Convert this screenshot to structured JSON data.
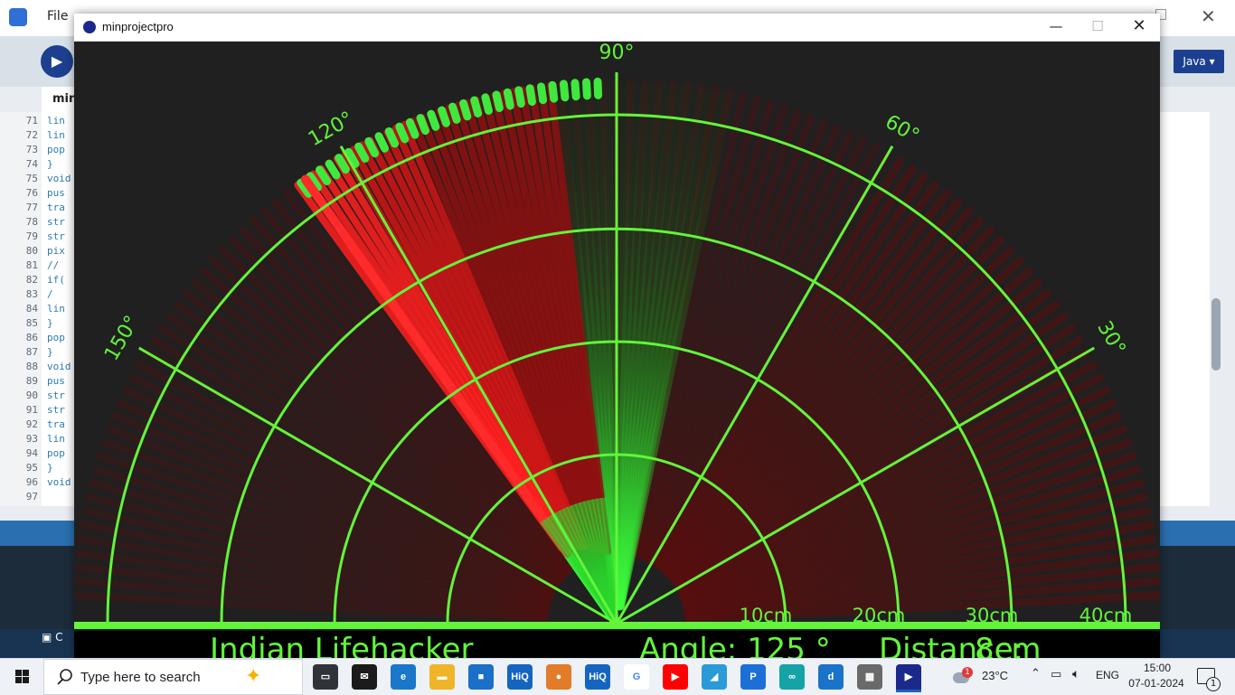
{
  "ide": {
    "menu_file": "File",
    "mode_label": "Java ▾",
    "tab_label": "min",
    "console_tab": "C",
    "lines": [
      {
        "num": "71",
        "code": "lin"
      },
      {
        "num": "72",
        "code": "lin"
      },
      {
        "num": "73",
        "code": "pop"
      },
      {
        "num": "74",
        "code": "}"
      },
      {
        "num": "75",
        "code": "void"
      },
      {
        "num": "76",
        "code": "pus"
      },
      {
        "num": "77",
        "code": "tra"
      },
      {
        "num": "78",
        "code": "str"
      },
      {
        "num": "79",
        "code": "str"
      },
      {
        "num": "80",
        "code": "pix"
      },
      {
        "num": "81",
        "code": "//"
      },
      {
        "num": "82",
        "code": "if("
      },
      {
        "num": "83",
        "code": "/"
      },
      {
        "num": "84",
        "code": "lin"
      },
      {
        "num": "85",
        "code": "}"
      },
      {
        "num": "86",
        "code": "pop"
      },
      {
        "num": "87",
        "code": "}"
      },
      {
        "num": "88",
        "code": "void"
      },
      {
        "num": "89",
        "code": "pus"
      },
      {
        "num": "90",
        "code": "str"
      },
      {
        "num": "91",
        "code": "str"
      },
      {
        "num": "92",
        "code": "tra"
      },
      {
        "num": "93",
        "code": "lin"
      },
      {
        "num": "94",
        "code": "pop"
      },
      {
        "num": "95",
        "code": "}"
      },
      {
        "num": "96",
        "code": "void"
      },
      {
        "num": "97",
        "code": ""
      }
    ]
  },
  "window": {
    "title": "minprojectpro",
    "minimize": "—",
    "maximize": "☐",
    "close": "✕"
  },
  "radar": {
    "angle_labels": [
      "30°",
      "60°",
      "90°",
      "120°",
      "150°"
    ],
    "angle_values": [
      30,
      60,
      90,
      120,
      150
    ],
    "range_labels": [
      "10cm",
      "20cm",
      "30cm",
      "40cm"
    ],
    "credit": "Indian Lifehacker",
    "angle_readout": "Angle: 125 °",
    "distance_readout": "Distance:",
    "distance_value": "8cm",
    "current_angle": 125,
    "colors": {
      "grid": "#62f53a",
      "sweep": "#1fbf1f",
      "detect": "#ff1e1e",
      "text": "#62f53a",
      "background": "#202020"
    }
  },
  "taskbar": {
    "search_placeholder": "Type here to search",
    "apps": [
      {
        "name": "task-view-icon",
        "label": "▭"
      },
      {
        "name": "mail-app-icon",
        "label": "✉"
      },
      {
        "name": "edge-browser-icon",
        "label": "e"
      },
      {
        "name": "file-explorer-icon",
        "label": "▬"
      },
      {
        "name": "store-icon",
        "label": "■"
      },
      {
        "name": "hiq-app-icon",
        "label": "HiQ"
      },
      {
        "name": "medal-app-icon",
        "label": "●"
      },
      {
        "name": "hiq-app-2-icon",
        "label": "HiQ"
      },
      {
        "name": "google-icon",
        "label": "G"
      },
      {
        "name": "youtube-icon",
        "label": "▶"
      },
      {
        "name": "notes-app-icon",
        "label": "◢"
      },
      {
        "name": "processing-ide-icon",
        "label": "P"
      },
      {
        "name": "arduino-icon",
        "label": "∞"
      },
      {
        "name": "d-app-icon",
        "label": "d"
      },
      {
        "name": "network-app-icon",
        "label": "▦"
      },
      {
        "name": "sketch-app-icon",
        "label": "▶"
      }
    ],
    "weather_temp": "23°C",
    "weather_badge": "1",
    "language": "ENG",
    "time": "15:00",
    "date": "07-01-2024",
    "notification_count": "1"
  }
}
